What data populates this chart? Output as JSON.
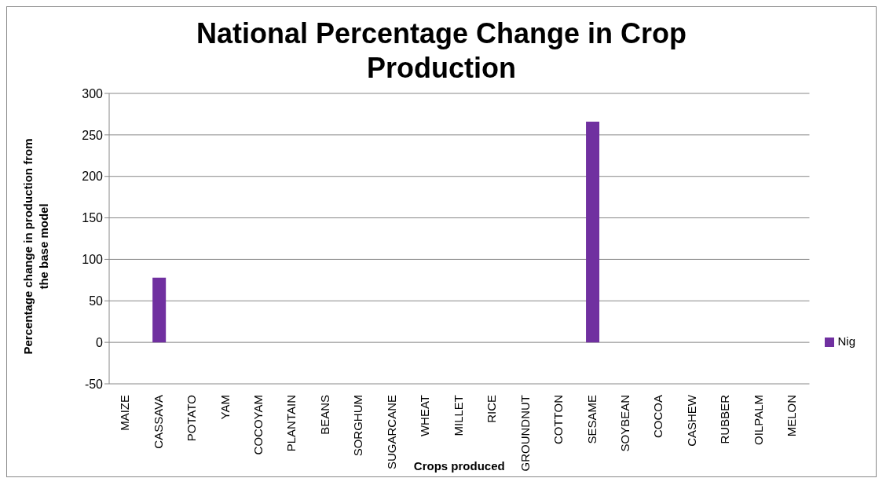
{
  "chart_data": {
    "type": "bar",
    "title": "National Percentage Change in Crop Production",
    "xlabel": "Crops  produced",
    "ylabel": "Percentage change in production from the base model",
    "categories": [
      "MAIZE",
      "CASSAVA",
      "POTATO",
      "YAM",
      "COCOYAM",
      "PLANTAIN",
      "BEANS",
      "SORGHUM",
      "SUGARCANE",
      "WHEAT",
      "MILLET",
      "RICE",
      "GROUNDNUT",
      "COTTON",
      "SESAME",
      "SOYBEAN",
      "COCOA",
      "CASHEW",
      "RUBBER",
      "OILPALM",
      "MELON"
    ],
    "series": [
      {
        "name": "Nig",
        "color": "#7030a0",
        "values": [
          0,
          78,
          0,
          0,
          0,
          0,
          0,
          0,
          0,
          0,
          0,
          0,
          0,
          0,
          266,
          0,
          0,
          0,
          0,
          0,
          0
        ]
      }
    ],
    "ylim": [
      -50,
      300
    ],
    "yticks": [
      -50,
      0,
      50,
      100,
      150,
      200,
      250,
      300
    ],
    "grid": "y",
    "legend": "right"
  }
}
